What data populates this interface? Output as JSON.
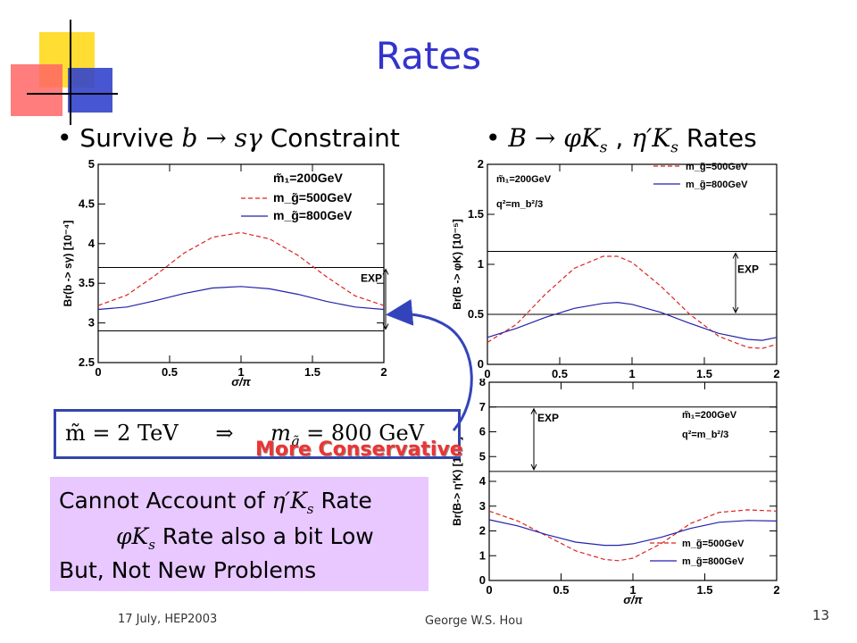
{
  "slide": {
    "title": "Rates",
    "bullet_left": {
      "prefix": "Survive ",
      "expr": "b → sγ",
      "suffix": " Constraint"
    },
    "bullet_right": {
      "expr1": "B → φK",
      "sub1": "s",
      "sep": " ,  ",
      "expr2": "η′K",
      "sub2": "s",
      "suffix": " Rates"
    },
    "formula": {
      "lhs": "m̃ = 2 TeV",
      "arrow": "⇒",
      "rhs": "m",
      "rhs_sub": "g̃",
      "rhs_val": " = 800 GeV"
    },
    "annotation": "More Conservative",
    "note": {
      "line1_a": "Cannot Account of ",
      "line1_sym": "η′K",
      "line1_sub": "s",
      "line1_b": " Rate",
      "line2_sym": "φK",
      "line2_sub": "s",
      "line2_b": "  Rate also a bit Low",
      "line3": "But, Not New Problems"
    },
    "footer": {
      "date": "17 July, HEP2003",
      "author": "George W.S. Hou",
      "page": "13"
    },
    "colors": {
      "title": "#3333cc",
      "dashed": "#dd2222",
      "solid": "#2222aa",
      "note_bg": "#e8c8ff"
    }
  },
  "chart_data": [
    {
      "type": "line",
      "xlabel": "σ/π",
      "ylabel": "Br(b -> sγ)  [10⁻⁴]",
      "xlim": [
        0,
        2
      ],
      "ylim": [
        2.5,
        5
      ],
      "xticks": [
        "0",
        "0.5",
        "1",
        "1.5",
        "2"
      ],
      "yticks": [
        "2.5",
        "3",
        "3.5",
        "4",
        "4.5",
        "5"
      ],
      "legend": [
        "m̃₁=200GeV",
        "m_g̃=500GeV",
        "m_g̃=800GeV"
      ],
      "exp_label": "EXP",
      "exp_band": [
        2.9,
        3.7
      ],
      "series": [
        {
          "name": "m_g̃=500GeV",
          "style": "dashed",
          "x": [
            0,
            0.2,
            0.4,
            0.6,
            0.8,
            1.0,
            1.2,
            1.4,
            1.6,
            1.8,
            2.0
          ],
          "y": [
            3.22,
            3.35,
            3.6,
            3.88,
            4.08,
            4.14,
            4.06,
            3.85,
            3.58,
            3.34,
            3.22
          ]
        },
        {
          "name": "m_g̃=800GeV",
          "style": "solid",
          "x": [
            0,
            0.2,
            0.4,
            0.6,
            0.8,
            1.0,
            1.2,
            1.4,
            1.6,
            1.8,
            2.0
          ],
          "y": [
            3.17,
            3.2,
            3.28,
            3.37,
            3.44,
            3.46,
            3.43,
            3.36,
            3.27,
            3.2,
            3.17
          ]
        }
      ]
    },
    {
      "type": "line",
      "xlabel": "",
      "ylabel": "Br(B -> φK) [10⁻⁵]",
      "xlim": [
        0,
        2
      ],
      "ylim": [
        0,
        2
      ],
      "xticks": [
        "0",
        "0.5",
        "1",
        "1.5",
        "2"
      ],
      "yticks": [
        "0",
        "0.5",
        "1",
        "1.5",
        "2"
      ],
      "legend": [
        "m_g̃=500GeV",
        "m_g̃=800GeV",
        "m̃₁=200GeV",
        "q²=m_b²/3"
      ],
      "exp_label": "EXP",
      "exp_band": [
        0.5,
        1.13
      ],
      "series": [
        {
          "name": "m_g̃=500GeV",
          "style": "dashed",
          "x": [
            0,
            0.2,
            0.4,
            0.6,
            0.8,
            0.9,
            1.0,
            1.2,
            1.4,
            1.6,
            1.8,
            1.9,
            2.0
          ],
          "y": [
            0.22,
            0.4,
            0.7,
            0.96,
            1.08,
            1.08,
            1.02,
            0.78,
            0.5,
            0.28,
            0.17,
            0.16,
            0.2
          ]
        },
        {
          "name": "m_g̃=800GeV",
          "style": "solid",
          "x": [
            0,
            0.2,
            0.4,
            0.6,
            0.8,
            0.9,
            1.0,
            1.2,
            1.4,
            1.6,
            1.8,
            1.9,
            2.0
          ],
          "y": [
            0.27,
            0.36,
            0.47,
            0.56,
            0.61,
            0.62,
            0.6,
            0.52,
            0.41,
            0.31,
            0.25,
            0.24,
            0.27
          ]
        }
      ]
    },
    {
      "type": "line",
      "xlabel": "σ/π",
      "ylabel": "Br(B-> η′K) [10⁻⁵]",
      "xlim": [
        0,
        2
      ],
      "ylim": [
        0,
        8
      ],
      "xticks": [
        "0",
        "0.5",
        "1",
        "1.5",
        "2"
      ],
      "yticks": [
        "0",
        "1",
        "2",
        "3",
        "4",
        "5",
        "6",
        "7",
        "8"
      ],
      "legend": [
        "m̃₁=200GeV",
        "q²=m_b²/3",
        "m_g̃=500GeV",
        "m_g̃=800GeV"
      ],
      "exp_label": "EXP",
      "exp_band": [
        4.4,
        7.0
      ],
      "series": [
        {
          "name": "m_g̃=500GeV",
          "style": "dashed",
          "x": [
            0,
            0.2,
            0.4,
            0.6,
            0.8,
            0.9,
            1.0,
            1.2,
            1.4,
            1.6,
            1.8,
            2.0
          ],
          "y": [
            2.8,
            2.4,
            1.8,
            1.2,
            0.85,
            0.8,
            0.9,
            1.5,
            2.3,
            2.75,
            2.85,
            2.8
          ]
        },
        {
          "name": "m_g̃=800GeV",
          "style": "solid",
          "x": [
            0,
            0.2,
            0.4,
            0.6,
            0.8,
            0.9,
            1.0,
            1.2,
            1.4,
            1.6,
            1.8,
            2.0
          ],
          "y": [
            2.45,
            2.2,
            1.85,
            1.55,
            1.42,
            1.42,
            1.48,
            1.75,
            2.1,
            2.35,
            2.42,
            2.4
          ]
        }
      ]
    }
  ]
}
